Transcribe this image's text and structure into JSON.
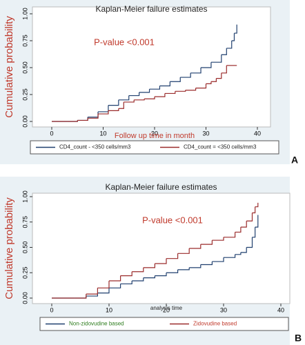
{
  "chart_data": [
    {
      "type": "line",
      "step": true,
      "panel_label": "A",
      "title": "Kaplan-Meier failure estimates",
      "x_label": "Follow up time in month",
      "y_label": "Cumulative probability",
      "annotation": "P-value <0.001",
      "xlim": [
        0,
        40
      ],
      "ylim": [
        0,
        1
      ],
      "xticks": [
        0,
        10,
        20,
        30,
        40
      ],
      "yticks": [
        {
          "value": 0,
          "label": "0.00"
        },
        {
          "value": 0.25,
          "label": "0.25"
        },
        {
          "value": 0.5,
          "label": "0.50"
        },
        {
          "value": 0.75,
          "label": "0.75"
        },
        {
          "value": 1,
          "label": "1.00"
        }
      ],
      "series": [
        {
          "name": "CD4_count - <350 cells/mm3",
          "color": "#1f3f6e",
          "x": [
            0,
            3,
            5,
            7,
            9,
            11,
            13,
            15,
            17,
            19,
            21,
            23,
            25,
            27,
            29,
            31,
            33,
            34,
            35,
            35.5,
            36
          ],
          "values": [
            0,
            0,
            0.01,
            0.04,
            0.09,
            0.15,
            0.2,
            0.24,
            0.27,
            0.3,
            0.33,
            0.37,
            0.41,
            0.45,
            0.5,
            0.55,
            0.62,
            0.68,
            0.75,
            0.82,
            0.9
          ]
        },
        {
          "name": "CD4_count = <350 cells/mm3",
          "color": "#9a2a2a",
          "x": [
            0,
            3,
            5,
            7,
            9,
            11,
            13,
            14,
            16,
            18,
            20,
            22,
            24,
            26,
            28,
            30,
            31,
            32,
            33,
            34,
            36
          ],
          "values": [
            0,
            0,
            0.01,
            0.03,
            0.07,
            0.1,
            0.12,
            0.18,
            0.2,
            0.21,
            0.23,
            0.26,
            0.28,
            0.29,
            0.31,
            0.35,
            0.37,
            0.4,
            0.45,
            0.52,
            0.52
          ]
        }
      ]
    },
    {
      "type": "line",
      "step": true,
      "panel_label": "B",
      "title": "Kaplan-Meier failure estimates",
      "x_label": "analysis time",
      "y_label": "Cumulative probability",
      "annotation": "P-value <0.001",
      "xlim": [
        0,
        40
      ],
      "ylim": [
        0,
        1
      ],
      "xticks": [
        0,
        10,
        20,
        30,
        40
      ],
      "yticks": [
        {
          "value": 0,
          "label": "0.00"
        },
        {
          "value": 0.25,
          "label": "0.25"
        },
        {
          "value": 0.5,
          "label": "0.50"
        },
        {
          "value": 0.75,
          "label": "0.75"
        },
        {
          "value": 1,
          "label": "1.00"
        }
      ],
      "series": [
        {
          "name": "Non-zidovudine based",
          "color": "#1f3f6e",
          "legend_text_color": "#2e7d1e",
          "x": [
            0,
            4,
            6,
            8,
            10,
            12,
            14,
            16,
            18,
            20,
            22,
            24,
            26,
            28,
            30,
            32,
            33,
            34,
            35,
            35.5,
            36
          ],
          "values": [
            0,
            0,
            0.02,
            0.05,
            0.1,
            0.14,
            0.17,
            0.2,
            0.22,
            0.25,
            0.28,
            0.3,
            0.33,
            0.36,
            0.4,
            0.43,
            0.45,
            0.5,
            0.6,
            0.7,
            0.82
          ]
        },
        {
          "name": "Zidovudine based",
          "color": "#9a2a2a",
          "legend_text_color": "#c0392b",
          "x": [
            0,
            4,
            6,
            8,
            10,
            12,
            14,
            16,
            18,
            20,
            22,
            24,
            26,
            28,
            30,
            32,
            33,
            34,
            35,
            35.5,
            36
          ],
          "values": [
            0,
            0,
            0.04,
            0.1,
            0.17,
            0.22,
            0.26,
            0.3,
            0.34,
            0.39,
            0.44,
            0.49,
            0.53,
            0.57,
            0.6,
            0.65,
            0.7,
            0.76,
            0.84,
            0.9,
            0.94
          ]
        }
      ]
    }
  ]
}
